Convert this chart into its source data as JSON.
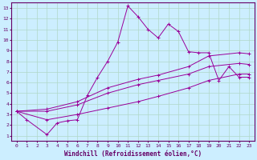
{
  "xlabel": "Windchill (Refroidissement éolien,°C)",
  "bg_color": "#cceeff",
  "grid_color": "#b0d8c8",
  "line_color": "#990099",
  "spine_color": "#660066",
  "xlim": [
    -0.5,
    23.5
  ],
  "ylim": [
    0.5,
    13.5
  ],
  "xticks": [
    0,
    1,
    2,
    3,
    4,
    5,
    6,
    7,
    8,
    9,
    10,
    11,
    12,
    13,
    14,
    15,
    16,
    17,
    18,
    19,
    20,
    21,
    22,
    23
  ],
  "yticks": [
    1,
    2,
    3,
    4,
    5,
    6,
    7,
    8,
    9,
    10,
    11,
    12,
    13
  ],
  "series": [
    {
      "x": [
        0,
        1,
        3,
        4,
        5,
        6,
        7,
        8,
        9,
        10,
        11,
        12,
        13,
        14,
        15,
        16,
        17,
        18,
        19,
        20,
        21,
        22,
        23
      ],
      "y": [
        3.3,
        2.5,
        1.1,
        2.2,
        2.4,
        2.5,
        4.8,
        6.5,
        8.0,
        9.8,
        13.2,
        12.2,
        11.0,
        10.2,
        11.5,
        10.8,
        8.9,
        8.8,
        8.8,
        6.2,
        7.5,
        6.5,
        6.5
      ]
    },
    {
      "x": [
        0,
        3,
        6,
        9,
        12,
        14,
        17,
        19,
        22,
        23
      ],
      "y": [
        3.3,
        3.5,
        4.2,
        5.5,
        6.3,
        6.7,
        7.5,
        8.5,
        8.8,
        8.7
      ]
    },
    {
      "x": [
        0,
        3,
        6,
        9,
        12,
        14,
        17,
        19,
        22,
        23
      ],
      "y": [
        3.3,
        3.3,
        3.9,
        5.0,
        5.8,
        6.2,
        6.8,
        7.5,
        7.8,
        7.7
      ]
    },
    {
      "x": [
        0,
        3,
        6,
        9,
        12,
        14,
        17,
        19,
        22,
        23
      ],
      "y": [
        3.3,
        2.5,
        3.0,
        3.6,
        4.2,
        4.7,
        5.5,
        6.2,
        6.8,
        6.8
      ]
    }
  ]
}
